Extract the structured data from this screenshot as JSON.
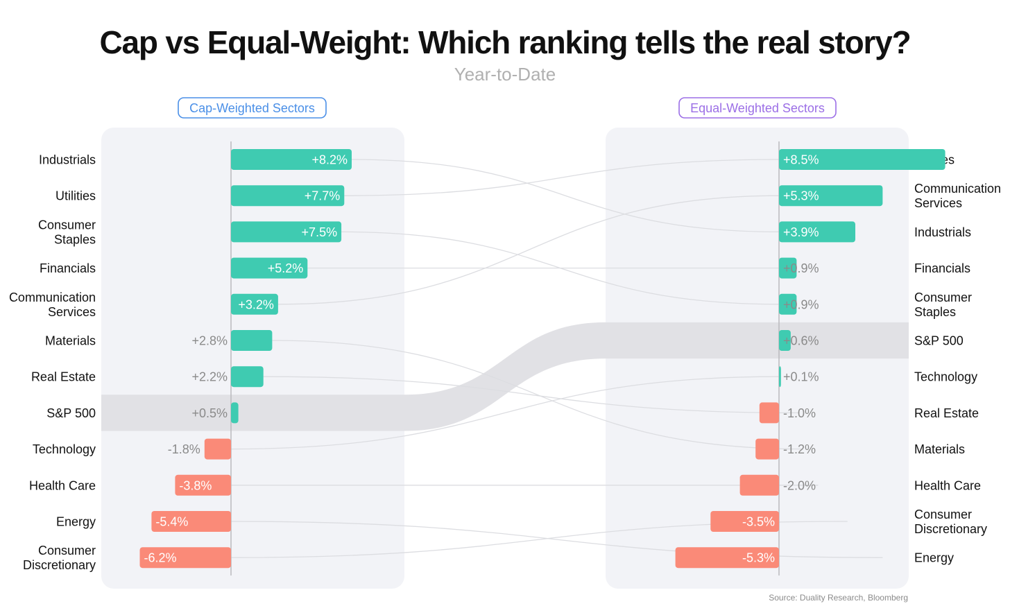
{
  "chart_data": {
    "type": "bar",
    "title": "Cap vs Equal-Weight: Which ranking tells the real story?",
    "subtitle": "Year-to-Date",
    "source": "Source: Duality Research, Bloomberg",
    "colors": {
      "positive": "#3fcbb1",
      "negative": "#fa8a78",
      "panel": "#f2f3f7",
      "highlight": "#e1e1e5",
      "connector": "#dcdde1",
      "cap_pill": "#4a8fe7",
      "equal_pill": "#9b6ee6"
    },
    "panels": [
      {
        "label": "Cap-Weighted Sectors",
        "xlim": [
          -8.6,
          12
        ],
        "categories": [
          [
            "Industrials"
          ],
          [
            "Utilities"
          ],
          [
            "Consumer",
            "Staples"
          ],
          [
            "Financials"
          ],
          [
            "Communication",
            "Services"
          ],
          [
            "Materials"
          ],
          [
            "Real Estate"
          ],
          [
            "S&P 500"
          ],
          [
            "Technology"
          ],
          [
            "Health Care"
          ],
          [
            "Energy"
          ],
          [
            "Consumer",
            "Discretionary"
          ]
        ],
        "values": [
          8.2,
          7.7,
          7.5,
          5.2,
          3.2,
          2.8,
          2.2,
          0.5,
          -1.8,
          -3.8,
          -5.4,
          -6.2
        ],
        "labels": [
          "+8.2%",
          "+7.7%",
          "+7.5%",
          "+5.2%",
          "+3.2%",
          "+2.8%",
          "+2.2%",
          "+0.5%",
          "-1.8%",
          "-3.8%",
          "-5.4%",
          "-6.2%"
        ]
      },
      {
        "label": "Equal-Weighted Sectors",
        "xlim": [
          -6.6,
          8.9
        ],
        "categories": [
          [
            "Utilities"
          ],
          [
            "Communication",
            "Services"
          ],
          [
            "Industrials"
          ],
          [
            "Financials"
          ],
          [
            "Consumer",
            "Staples"
          ],
          [
            "S&P 500"
          ],
          [
            "Technology"
          ],
          [
            "Real Estate"
          ],
          [
            "Materials"
          ],
          [
            "Health Care"
          ],
          [
            "Consumer",
            "Discretionary"
          ],
          [
            "Energy"
          ]
        ],
        "values": [
          8.5,
          5.3,
          3.9,
          0.9,
          0.9,
          0.6,
          0.1,
          -1.0,
          -1.2,
          -2.0,
          -3.5,
          -5.3
        ],
        "labels": [
          "+8.5%",
          "+5.3%",
          "+3.9%",
          "+0.9%",
          "+0.9%",
          "+0.6%",
          "+0.1%",
          "-1.0%",
          "-1.2%",
          "-2.0%",
          "-3.5%",
          "-5.3%"
        ]
      }
    ],
    "highlight": "S&P 500"
  }
}
